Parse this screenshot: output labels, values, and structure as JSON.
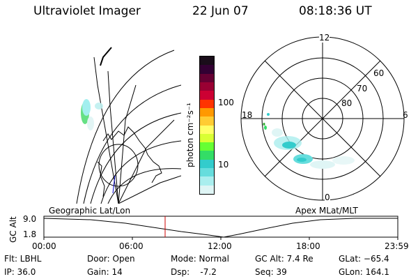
{
  "header": {
    "instrument": "Ultraviolet Imager",
    "date": "22 Jun 07",
    "time": "08:18:36 UT"
  },
  "colorbar": {
    "unit_label": "photon cm⁻²s⁻¹",
    "ticks": [
      "100",
      "10"
    ],
    "colors": [
      "#1a0d1a",
      "#330033",
      "#660033",
      "#990033",
      "#cc0033",
      "#ff3300",
      "#ff9900",
      "#ffcc33",
      "#ffff66",
      "#d9ff33",
      "#66ff33",
      "#33dd66",
      "#33cccc",
      "#66dddd",
      "#aaeeee",
      "#dff5f5"
    ]
  },
  "polar_plot": {
    "mlt_labels": {
      "top": "12",
      "left": "18",
      "right": "6",
      "bottom": "0"
    },
    "lat_labels": [
      "60",
      "70",
      "80"
    ]
  },
  "timeline": {
    "left_caption": "Geographic Lat/Lon",
    "right_caption": "Apex MLat/MLT",
    "axis_title": "GC Alt",
    "alt_ticks": [
      "9.0",
      "1.8"
    ],
    "time_ticks": [
      "00:00",
      "06:00",
      "12:00",
      "18:00",
      "23:59"
    ],
    "marker_color": "#cc0000"
  },
  "footer": {
    "filter": "Flt: LBHL",
    "ip": "IP: 36.0",
    "door": "Door: Open",
    "gain": "Gain: 14",
    "mode": "Mode: Normal",
    "dsp": "Dsp:    -7.2",
    "gc_alt": "GC Alt: 7.4 Re",
    "seq": "Seq: 39",
    "glat": "GLat: −65.4",
    "glon": "GLon: 164.1"
  }
}
